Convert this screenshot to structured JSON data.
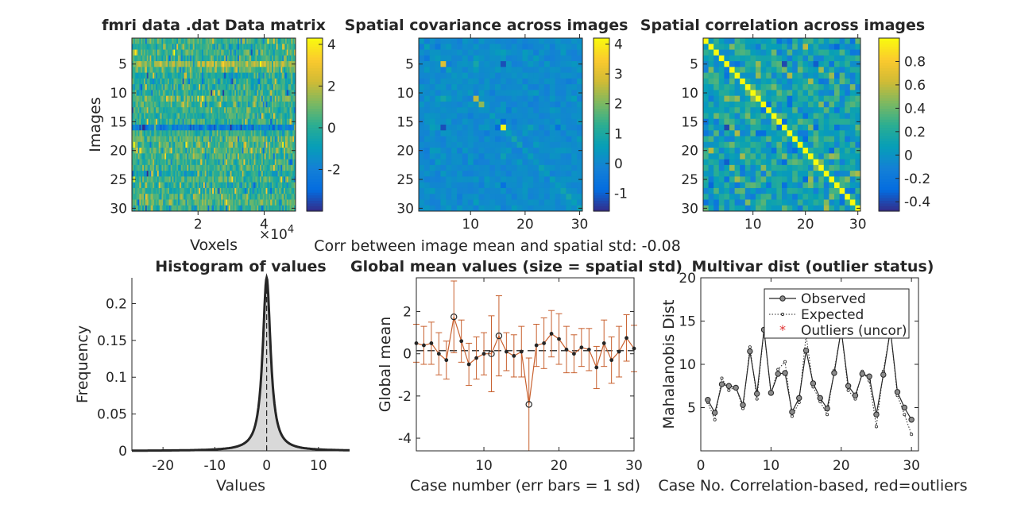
{
  "figure": {
    "midline": "Corr between image mean and spatial std: -0.08"
  },
  "chart_data": [
    {
      "type": "heatmap",
      "title": "fmri data .dat Data matrix",
      "xlabel": "Voxels",
      "ylabel": "Images",
      "x_exponent": "×10^4",
      "x_exponent_base": "×10",
      "x_exponent_power": "4",
      "xticks": [
        2,
        4
      ],
      "xtick_labels": [
        "2",
        "4"
      ],
      "yticks": [
        5,
        10,
        15,
        20,
        25,
        30
      ],
      "ytick_labels": [
        "5",
        "10",
        "15",
        "20",
        "25",
        "30"
      ],
      "colorbar_ticks": [
        -2,
        0,
        2,
        4
      ],
      "colorbar_tick_labels": [
        "-2",
        "0",
        "2",
        "4"
      ],
      "clim": [
        -4,
        4.3
      ],
      "rows": 30,
      "colormap": "parula",
      "row_means": [
        0.5,
        0.1,
        0.5,
        0.2,
        1.7,
        0.6,
        -0.5,
        -0.2,
        0.0,
        -0.1,
        0.8,
        0.2,
        0.3,
        0.1,
        0.1,
        -2.4,
        0.2,
        0.9,
        0.6,
        0.7,
        0.2,
        0.1,
        0.3,
        -0.5,
        0.4,
        -0.1,
        0.2,
        0.5,
        0.8,
        0.2
      ]
    },
    {
      "type": "heatmap",
      "title": "Spatial covariance across images",
      "xticks": [
        10,
        20,
        30
      ],
      "xtick_labels": [
        "10",
        "20",
        "30"
      ],
      "yticks": [
        5,
        10,
        15,
        20,
        25,
        30
      ],
      "ytick_labels": [
        "5",
        "10",
        "15",
        "20",
        "25",
        "30"
      ],
      "colorbar_ticks": [
        -1,
        0,
        1,
        2,
        3,
        4
      ],
      "colorbar_tick_labels": [
        "-1",
        "0",
        "1",
        "2",
        "3",
        "4"
      ],
      "clim": [
        -1.6,
        4.2
      ],
      "size": 30,
      "diagonal": [
        0.4,
        0.6,
        0.3,
        0.5,
        3.0,
        0.7,
        0.4,
        0.3,
        0.2,
        0.5,
        2.6,
        2.2,
        0.3,
        0.6,
        0.5,
        4.1,
        0.6,
        0.9,
        0.8,
        0.5,
        0.6,
        0.4,
        0.7,
        0.5,
        0.6,
        0.5,
        0.8,
        0.9,
        0.6,
        0.7
      ],
      "colormap": "parula"
    },
    {
      "type": "heatmap",
      "title": "Spatial correlation across images",
      "xticks": [
        10,
        20,
        30
      ],
      "xtick_labels": [
        "10",
        "20",
        "30"
      ],
      "yticks": [
        5,
        10,
        15,
        20,
        25,
        30
      ],
      "ytick_labels": [
        "5",
        "10",
        "15",
        "20",
        "25",
        "30"
      ],
      "colorbar_ticks": [
        -0.4,
        -0.2,
        0,
        0.2,
        0.4,
        0.6,
        0.8
      ],
      "colorbar_tick_labels": [
        "-0.4",
        "-0.2",
        "0",
        "0.2",
        "0.4",
        "0.6",
        "0.8"
      ],
      "clim": [
        -0.48,
        1
      ],
      "size": 30,
      "diagonal_value": 1,
      "colormap": "parula"
    },
    {
      "type": "area",
      "title": "Histogram of values",
      "xlabel": "Values",
      "ylabel": "Frequency",
      "xlim": [
        -26,
        16
      ],
      "ylim": [
        0,
        0.235
      ],
      "xticks": [
        -20,
        -10,
        0,
        10
      ],
      "xtick_labels": [
        "-20",
        "-10",
        "0",
        "10"
      ],
      "yticks": [
        0,
        0.05,
        0.1,
        0.15,
        0.2
      ],
      "ytick_labels": [
        "0",
        "0.05",
        "0.1",
        "0.15",
        "0.2"
      ],
      "peak": {
        "x": 0,
        "y": 0.235
      },
      "reference_line_x": 0
    },
    {
      "type": "line",
      "title": "Global mean values (size = spatial std)",
      "xlabel": "Case number (err bars = 1 sd)",
      "ylabel": "Global mean",
      "xlim": [
        1,
        30
      ],
      "ylim": [
        -4.6,
        3.6
      ],
      "xticks": [
        10,
        20,
        30
      ],
      "xtick_labels": [
        "10",
        "20",
        "30"
      ],
      "yticks": [
        -4,
        -2,
        0,
        2
      ],
      "ytick_labels": [
        "-4",
        "-2",
        "0",
        "2"
      ],
      "reference_line_y": 0.15,
      "x": [
        1,
        2,
        3,
        4,
        5,
        6,
        7,
        8,
        9,
        10,
        11,
        12,
        13,
        14,
        15,
        16,
        17,
        18,
        19,
        20,
        21,
        22,
        23,
        24,
        25,
        26,
        27,
        28,
        29,
        30
      ],
      "y": [
        0.5,
        0.4,
        0.5,
        0.0,
        -0.3,
        1.75,
        0.6,
        -0.5,
        -0.2,
        0.0,
        0.0,
        0.85,
        0.1,
        -0.1,
        0.1,
        -2.4,
        0.4,
        0.5,
        0.95,
        0.7,
        0.2,
        0.0,
        0.3,
        0.2,
        -0.65,
        0.5,
        -0.3,
        0.1,
        0.75,
        0.25
      ],
      "sd": [
        0.9,
        0.9,
        1.0,
        1.0,
        0.9,
        1.7,
        1.0,
        1.0,
        1.0,
        1.0,
        1.8,
        1.9,
        0.9,
        1.0,
        1.2,
        2.2,
        1.0,
        1.2,
        1.1,
        1.2,
        1.1,
        0.9,
        0.9,
        1.0,
        1.0,
        1.1,
        1.1,
        1.2,
        1.1,
        1.1
      ],
      "large_marker_cases": [
        6,
        11,
        12,
        16
      ]
    },
    {
      "type": "line",
      "title": "Multivar dist (outlier status)",
      "xlabel": "Case No. Correlation-based, red=outliers",
      "ylabel": "Mahalanobis Dist",
      "xlim": [
        0,
        31
      ],
      "ylim": [
        0,
        20
      ],
      "xticks": [
        0,
        10,
        20,
        30
      ],
      "xtick_labels": [
        "0",
        "10",
        "20",
        "30"
      ],
      "yticks": [
        5,
        10,
        15,
        20
      ],
      "ytick_labels": [
        "5",
        "10",
        "15",
        "20"
      ],
      "legend_position": "top-right",
      "series": [
        {
          "name": "Observed",
          "x": [
            1,
            2,
            3,
            4,
            5,
            6,
            7,
            8,
            9,
            10,
            11,
            12,
            13,
            14,
            15,
            16,
            17,
            18,
            19,
            20,
            21,
            22,
            23,
            24,
            25,
            26,
            27,
            28,
            29,
            30
          ],
          "values": [
            5.9,
            4.4,
            7.7,
            7.5,
            7.3,
            5.3,
            11.5,
            6.6,
            14.0,
            6.7,
            8.9,
            9.0,
            4.5,
            6.1,
            11.6,
            7.8,
            6.1,
            4.9,
            9.0,
            14.0,
            7.5,
            6.4,
            8.9,
            8.6,
            4.2,
            8.8,
            14.0,
            6.8,
            5.0,
            3.6
          ]
        },
        {
          "name": "Expected",
          "x": [
            1,
            2,
            3,
            4,
            5,
            6,
            7,
            8,
            9,
            10,
            11,
            12,
            13,
            14,
            15,
            16,
            17,
            18,
            19,
            20,
            21,
            22,
            23,
            24,
            25,
            26,
            27,
            28,
            29,
            30
          ],
          "values": [
            5.6,
            3.6,
            8.4,
            7.0,
            7.4,
            4.9,
            12.0,
            6.0,
            14.0,
            6.6,
            9.4,
            10.3,
            4.0,
            5.6,
            13.4,
            7.4,
            5.7,
            4.2,
            9.3,
            14.0,
            7.0,
            6.0,
            9.2,
            8.1,
            2.8,
            9.2,
            14.0,
            6.4,
            4.2,
            1.9
          ]
        },
        {
          "name": "Outliers (uncor)",
          "x": [],
          "values": []
        }
      ]
    }
  ]
}
